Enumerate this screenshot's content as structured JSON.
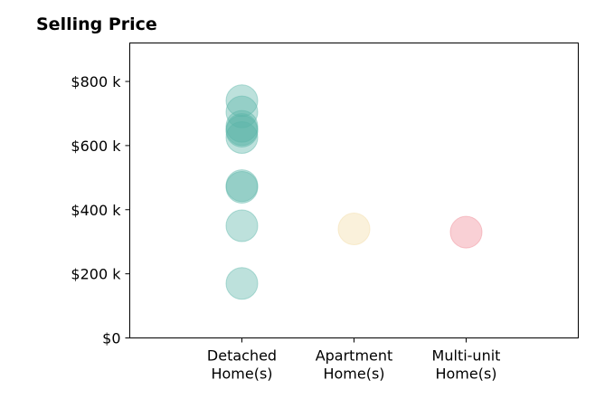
{
  "chart_data": {
    "type": "scatter",
    "title": "Selling Price",
    "xlabel": "",
    "ylabel": "",
    "categories": [
      [
        "Detached",
        "Home(s)"
      ],
      [
        "Apartment",
        "Home(s)"
      ],
      [
        "Multi-unit",
        "Home(s)"
      ]
    ],
    "xlim": [
      -1,
      3
    ],
    "ylim": [
      0,
      920000
    ],
    "y_ticks": [
      {
        "value": 0,
        "label": "$0"
      },
      {
        "value": 200000,
        "label": "$200 k"
      },
      {
        "value": 400000,
        "label": "$400 k"
      },
      {
        "value": 600000,
        "label": "$600 k"
      },
      {
        "value": 800000,
        "label": "$800 k"
      }
    ],
    "grid": false,
    "legend": "none",
    "series": [
      {
        "category_index": 0,
        "color": "#5bb5a8",
        "values": [
          740000,
          705000,
          660000,
          650000,
          645000,
          625000,
          475000,
          470000,
          350000,
          170000
        ]
      },
      {
        "category_index": 1,
        "color": "#f2dba6",
        "values": [
          340000
        ]
      },
      {
        "category_index": 2,
        "color": "#f08a95",
        "values": [
          330000
        ]
      }
    ]
  }
}
